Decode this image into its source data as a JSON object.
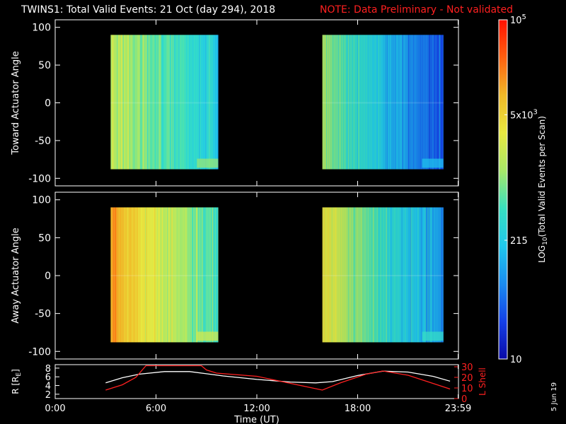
{
  "header": {
    "title": "TWINS1: Total Valid Events: 21 Oct (day 294), 2018",
    "note": "NOTE: Data Preliminary - Not validated"
  },
  "colors": {
    "note": "#ff2020",
    "r_line": "#ffffff",
    "lshell_line": "#ff2020",
    "axis": "#ffffff",
    "colormap": [
      "#0a0aa8",
      "#1440e8",
      "#1a8cf0",
      "#20c8ec",
      "#38e0c0",
      "#a8e868",
      "#e8e840",
      "#f0b828",
      "#ff6010",
      "#ff1000"
    ]
  },
  "chart_data": [
    {
      "id": "toward",
      "type": "heatmap",
      "ylabel": "Toward Actuator Angle",
      "ylim": [
        -110,
        110
      ],
      "yticks": [
        "100",
        "50",
        "0",
        "-50",
        "-100"
      ],
      "xlim_hours": [
        0,
        24
      ],
      "angle_range": [
        -88,
        90
      ],
      "blocks": [
        {
          "start_hours": 3.3,
          "end_hours": 9.7,
          "level_start": 0.62,
          "level_end": 0.36
        },
        {
          "start_hours": 15.9,
          "end_hours": 23.1,
          "level_start": 0.58,
          "level_end": 0.14
        }
      ]
    },
    {
      "id": "away",
      "type": "heatmap",
      "ylabel": "Away Actuator Angle",
      "ylim": [
        -110,
        110
      ],
      "yticks": [
        "100",
        "50",
        "0",
        "-50",
        "-100"
      ],
      "xlim_hours": [
        0,
        24
      ],
      "angle_range": [
        -88,
        90
      ],
      "blocks": [
        {
          "start_hours": 3.3,
          "end_hours": 9.7,
          "level_start": 0.83,
          "level_end": 0.45
        },
        {
          "start_hours": 15.9,
          "end_hours": 23.1,
          "level_start": 0.7,
          "level_end": 0.25
        }
      ]
    },
    {
      "id": "orbit",
      "type": "line",
      "ylabel": "R [R",
      "ylabel_sub": "E",
      "ylabel_close": "]",
      "ylim": [
        1,
        8.8
      ],
      "yticks": [
        "8",
        "6",
        "4",
        "2"
      ],
      "y2label": "L Shell",
      "y2lim": [
        0,
        32
      ],
      "y2ticks": [
        "30",
        "20",
        "10",
        "0"
      ],
      "xlabel": "Time (UT)",
      "xticks": [
        "0:00",
        "6:00",
        "12:00",
        "18:00",
        "23:59"
      ],
      "xtick_hours": [
        0,
        6,
        12,
        18,
        23.98
      ],
      "series": [
        {
          "axis": "left",
          "x": [
            3.0,
            4.0,
            5.0,
            6.5,
            8.0,
            9.0,
            10.0,
            12.0,
            14.0,
            15.5,
            16.5,
            18.0,
            19.5,
            21.0,
            22.5,
            23.5
          ],
          "y": [
            4.6,
            5.8,
            6.6,
            7.2,
            7.2,
            6.7,
            6.2,
            5.4,
            4.8,
            4.6,
            4.9,
            6.3,
            7.3,
            7.1,
            6.1,
            5.0
          ]
        },
        {
          "axis": "right",
          "x": [
            3.0,
            4.0,
            4.8,
            5.4,
            8.7,
            9.0,
            9.6,
            12.0,
            15.9,
            17.0,
            18.5,
            19.5,
            21.0,
            23.5
          ],
          "y": [
            8,
            13,
            20,
            31,
            31,
            27,
            24,
            21,
            8,
            15,
            23,
            26,
            22,
            9
          ]
        }
      ]
    }
  ],
  "colorbar": {
    "label_html": "LOG",
    "label_sub": "10",
    "label_rest": "(Total Valid Events per Scan)",
    "ticks": [
      {
        "text": "10",
        "frac": 0.0
      },
      {
        "text": "215",
        "frac": 0.35
      },
      {
        "text": "5x10",
        "sup": "3",
        "frac": 0.72
      },
      {
        "text": "10",
        "sup": "5",
        "frac": 1.0
      }
    ]
  },
  "footer": {
    "date": "5 Jun 19"
  }
}
